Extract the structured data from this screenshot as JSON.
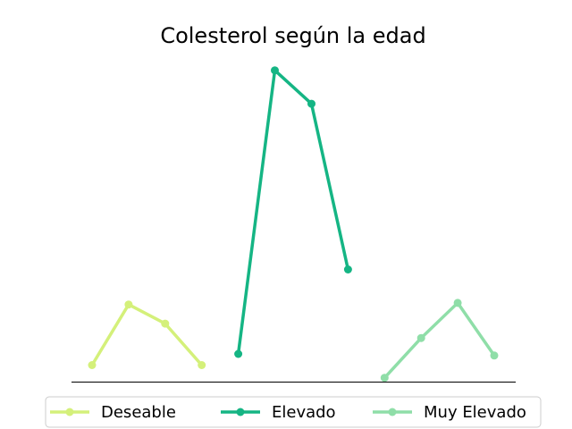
{
  "chart_data": {
    "type": "line",
    "title": "Colesterol según la edad",
    "xlabel": "",
    "ylabel": "",
    "x": [
      0,
      1,
      2,
      3,
      4,
      5,
      6,
      7,
      8,
      9,
      10,
      11
    ],
    "ylim": [
      0,
      100
    ],
    "grid": false,
    "legend_position": "bottom",
    "series": [
      {
        "name": "Deseable",
        "color": "#d4f07a",
        "x": [
          0,
          1,
          2,
          3
        ],
        "values": [
          4.5,
          23.5,
          17.5,
          4.5
        ]
      },
      {
        "name": "Elevado",
        "color": "#15b584",
        "x": [
          4,
          5,
          6,
          7
        ],
        "values": [
          8,
          97,
          86.5,
          34.5
        ]
      },
      {
        "name": "Muy Elevado",
        "color": "#8fdea8",
        "x": [
          8,
          9,
          10,
          11
        ],
        "values": [
          0.5,
          13,
          24,
          7.5
        ]
      }
    ]
  }
}
